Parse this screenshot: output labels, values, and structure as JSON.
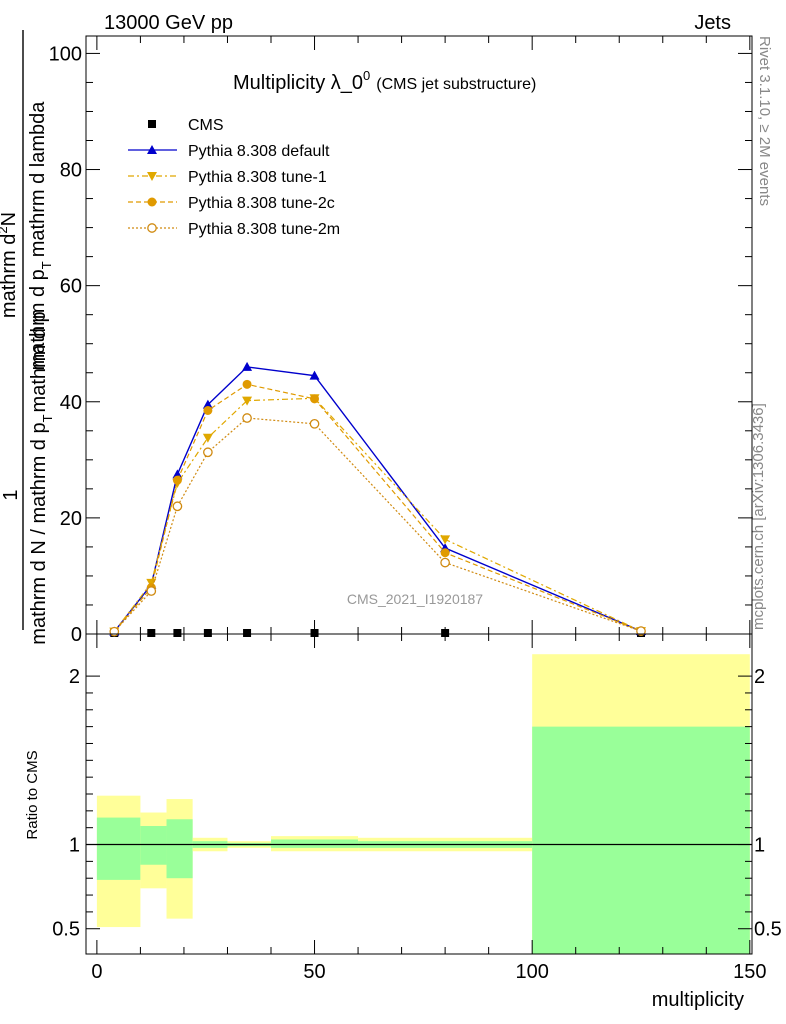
{
  "header": {
    "left": "13000 GeV pp",
    "right": "Jets"
  },
  "side_labels": {
    "top": "Rivet 3.1.10, ≥ 2M events",
    "bottom": "mcplots.cern.ch [arXiv:1306.3436]"
  },
  "watermark": "CMS_2021_I1920187",
  "chart_data": [
    {
      "type": "line",
      "title_main": "Multiplicity λ_0",
      "title_sup": "0",
      "title_note": "(CMS jet substructure)",
      "ylabel_numerator": "1",
      "ylabel_denominator": "mathrm d N / mathrm d p",
      "ylabel_denominator_sub": "T",
      "ylabel_denominator_tail": "mathrm d p",
      "ylabel_denominator_tail_sub": "T",
      "ylabel_denominator_end": "mathrm d lambda",
      "ylabel_top_lines": [
        "mathrm d",
        "N"
      ],
      "ylabel_full_numerator": "mathrm d",
      "ylabel_full_numerator_sup": "2",
      "ylabel_full_numerator_tail": "N",
      "xlim": [
        -2.5,
        150.5
      ],
      "ylim": [
        0,
        103
      ],
      "yticks": [
        0,
        20,
        40,
        60,
        80,
        100
      ],
      "series": [
        {
          "name": "CMS",
          "color": "#000000",
          "marker": "square",
          "dash": "none",
          "x": [
            4,
            12.5,
            18.5,
            25.5,
            34.5,
            50,
            80,
            125
          ],
          "y": [
            0.15,
            0.15,
            0.15,
            0.15,
            0.15,
            0.15,
            0.15,
            0.15
          ]
        },
        {
          "name": "Pythia 8.308 default",
          "color": "#0000cc",
          "marker": "triangle-up",
          "dash": "none",
          "x": [
            4,
            12.5,
            18.5,
            25.5,
            34.5,
            50,
            80,
            125
          ],
          "y": [
            0.4,
            8.5,
            27.5,
            39.5,
            46.0,
            44.5,
            14.8,
            0.5
          ]
        },
        {
          "name": "Pythia 8.308 tune-1",
          "color": "#e0a800",
          "marker": "triangle-down",
          "dash": "6,3,2,3",
          "x": [
            4,
            12.5,
            18.5,
            25.5,
            34.5,
            50,
            80,
            125
          ],
          "y": [
            0.4,
            8.8,
            26.0,
            33.8,
            40.2,
            40.6,
            16.3,
            0.5
          ]
        },
        {
          "name": "Pythia 8.308 tune-2c",
          "color": "#e09a00",
          "marker": "circle",
          "dash": "5,3",
          "x": [
            4,
            12.5,
            18.5,
            25.5,
            34.5,
            50,
            80,
            125
          ],
          "y": [
            0.4,
            8.0,
            26.5,
            38.5,
            43.0,
            40.5,
            14.0,
            0.5
          ]
        },
        {
          "name": "Pythia 8.308 tune-2m",
          "color": "#d08a10",
          "marker": "circle-open",
          "dash": "2,2",
          "x": [
            4,
            12.5,
            18.5,
            25.5,
            34.5,
            50,
            80,
            125
          ],
          "y": [
            0.4,
            7.4,
            22.0,
            31.3,
            37.2,
            36.2,
            12.3,
            0.5
          ]
        }
      ]
    },
    {
      "type": "area",
      "ylabel": "Ratio to CMS",
      "xlabel": "multiplicity",
      "xlim": [
        -2.5,
        150.5
      ],
      "ylim": [
        0.35,
        2.25
      ],
      "yticks": [
        0.5,
        1,
        2
      ],
      "ytick_labels": [
        "0.5",
        "1",
        "2"
      ],
      "xticks": [
        0,
        50,
        100,
        150
      ],
      "bands": [
        {
          "x0": 0,
          "x1": 10,
          "stat_lo": 0.79,
          "stat_hi": 1.16,
          "tot_lo": 0.51,
          "tot_hi": 1.29
        },
        {
          "x0": 10,
          "x1": 16,
          "stat_lo": 0.88,
          "stat_hi": 1.11,
          "tot_lo": 0.74,
          "tot_hi": 1.19
        },
        {
          "x0": 16,
          "x1": 22,
          "stat_lo": 0.8,
          "stat_hi": 1.15,
          "tot_lo": 0.56,
          "tot_hi": 1.27
        },
        {
          "x0": 22,
          "x1": 30,
          "stat_lo": 0.98,
          "stat_hi": 1.02,
          "tot_lo": 0.96,
          "tot_hi": 1.04
        },
        {
          "x0": 30,
          "x1": 40,
          "stat_lo": 0.99,
          "stat_hi": 1.01,
          "tot_lo": 0.98,
          "tot_hi": 1.02
        },
        {
          "x0": 40,
          "x1": 60,
          "stat_lo": 0.98,
          "stat_hi": 1.03,
          "tot_lo": 0.96,
          "tot_hi": 1.05
        },
        {
          "x0": 60,
          "x1": 100,
          "stat_lo": 0.98,
          "stat_hi": 1.02,
          "tot_lo": 0.96,
          "tot_hi": 1.04
        },
        {
          "x0": 100,
          "x1": 150,
          "stat_lo": 0.35,
          "stat_hi": 1.7,
          "tot_lo": 0.35,
          "tot_hi": 2.13
        }
      ],
      "reference": 1
    }
  ]
}
